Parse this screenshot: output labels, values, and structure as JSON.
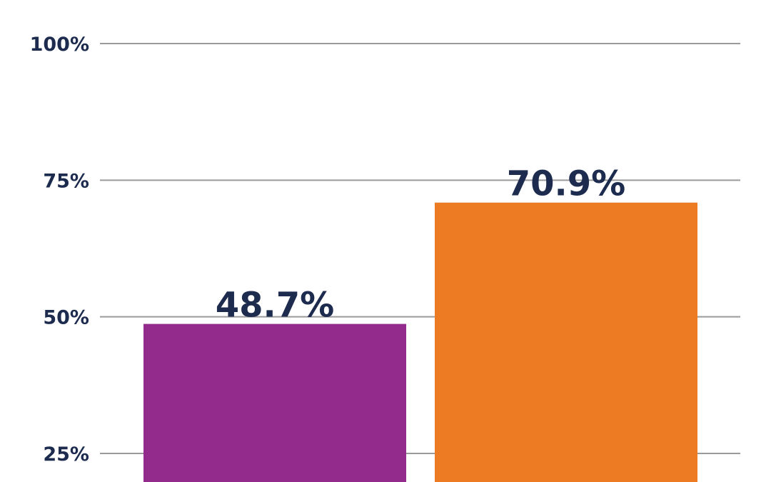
{
  "chart_data": {
    "type": "bar",
    "categories": [
      "",
      ""
    ],
    "values": [
      48.7,
      70.9
    ],
    "value_labels": [
      "48.7%",
      "70.9%"
    ],
    "colors": [
      "#922b8b",
      "#ec7b24"
    ],
    "ylim": [
      22.0,
      100
    ],
    "yticks": [
      25,
      50,
      75,
      100
    ],
    "ytick_labels": [
      "25%",
      "50%",
      "75%",
      "100%"
    ],
    "grid": true,
    "title": "",
    "xlabel": "",
    "ylabel": ""
  }
}
